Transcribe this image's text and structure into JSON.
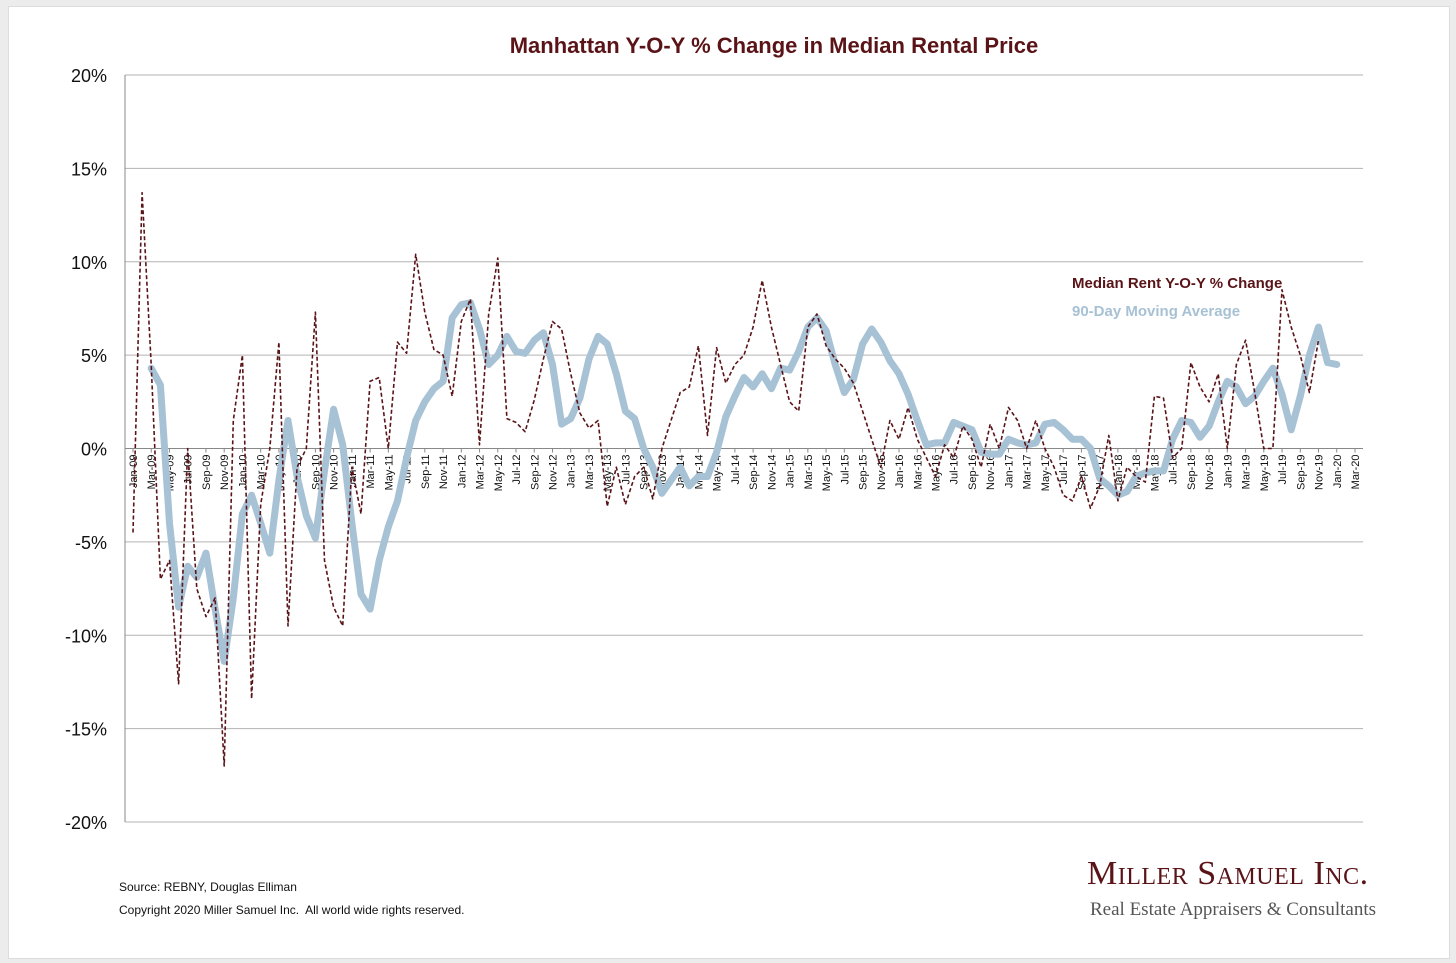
{
  "chart_data": {
    "type": "line",
    "title": "Manhattan Y-O-Y % Change in Median Rental Price",
    "xlabel": "",
    "ylabel": "",
    "ylim": [
      -20,
      20
    ],
    "yticks": [
      20,
      15,
      10,
      5,
      0,
      -5,
      -10,
      -15,
      -20
    ],
    "ytick_labels": [
      "20%",
      "15%",
      "10%",
      "5%",
      "0%",
      "-5%",
      "-10%",
      "-15%",
      "-20%"
    ],
    "grid": true,
    "legend_position": "upper-right",
    "colors": {
      "rent": "#5a1418",
      "avg": "#a7c1d5",
      "title": "#5a1418",
      "grid": "#b3b3b3"
    },
    "start_month": "Jan-09",
    "x_tick_labels": [
      "Jan-09",
      "Mar-09",
      "May-09",
      "Jul-09",
      "Sep-09",
      "Nov-09",
      "Jan-10",
      "Mar-10",
      "May-10",
      "Jul-10",
      "Sep-10",
      "Nov-10",
      "Jan-11",
      "Mar-11",
      "May-11",
      "Jul-11",
      "Sep-11",
      "Nov-11",
      "Jan-12",
      "Mar-12",
      "May-12",
      "Jul-12",
      "Sep-12",
      "Nov-12",
      "Jan-13",
      "Mar-13",
      "May-13",
      "Jul-13",
      "Sep-13",
      "Nov-13",
      "Jan-14",
      "Mar-14",
      "May-14",
      "Jul-14",
      "Sep-14",
      "Nov-14",
      "Jan-15",
      "Mar-15",
      "May-15",
      "Jul-15",
      "Sep-15",
      "Nov-15",
      "Jan-16",
      "Mar-16",
      "May-16",
      "Jul-16",
      "Sep-16",
      "Nov-16",
      "Jan-17",
      "Mar-17",
      "May-17",
      "Jul-17",
      "Sep-17",
      "Nov-17",
      "Jan-18",
      "Mar-18",
      "May-18",
      "Jul-18",
      "Sep-18",
      "Nov-18",
      "Jan-19",
      "Mar-19",
      "May-19",
      "Jul-19",
      "Sep-19",
      "Nov-19",
      "Jan-20",
      "Mar-20"
    ],
    "series": [
      {
        "name": "Median Rent Y-O-Y % Change",
        "start_index": 0,
        "values": [
          -4.5,
          13.7,
          4.5,
          -7.0,
          -6.0,
          -12.6,
          0.0,
          -7.5,
          -9.0,
          -8.0,
          -17.0,
          1.5,
          5.0,
          -13.4,
          -3.0,
          0.0,
          5.7,
          -9.5,
          -1.0,
          0.0,
          7.3,
          -6.0,
          -8.5,
          -9.5,
          -1.0,
          -3.5,
          3.6,
          3.8,
          0.0,
          5.7,
          5.1,
          10.4,
          7.3,
          5.3,
          5.0,
          2.8,
          6.8,
          8.0,
          0.2,
          7.2,
          10.2,
          1.6,
          1.4,
          0.9,
          2.6,
          4.8,
          6.8,
          6.4,
          4.0,
          1.9,
          1.1,
          1.5,
          -3.1,
          -1.0,
          -3.0,
          -1.5,
          -1.0,
          -2.7,
          0.0,
          1.5,
          3.0,
          3.3,
          5.5,
          0.7,
          5.4,
          3.5,
          4.5,
          5.0,
          6.5,
          9.0,
          6.5,
          4.5,
          2.5,
          2.0,
          6.5,
          7.2,
          5.5,
          4.8,
          4.3,
          3.5,
          2.0,
          0.5,
          -1.0,
          1.5,
          0.5,
          2.2,
          0.5,
          -0.5,
          -1.5,
          0.2,
          -0.5,
          1.2,
          0.5,
          -1.0,
          1.3,
          0.0,
          2.2,
          1.5,
          0.0,
          1.5,
          0.0,
          -1.0,
          -2.5,
          -2.8,
          -1.5,
          -3.2,
          -2.0,
          0.7,
          -2.8,
          -1.0,
          -1.5,
          -1.8,
          2.8,
          2.7,
          -0.5,
          0.0,
          4.6,
          3.3,
          2.5,
          4.0,
          0.0,
          4.5,
          5.8,
          3.0,
          0.0,
          0.0,
          8.5,
          6.5,
          5.0,
          3.0,
          5.8
        ]
      },
      {
        "name": "90-Day Moving Average",
        "start_index": 2,
        "values": [
          4.3,
          3.4,
          -4.0,
          -8.5,
          -6.3,
          -6.9,
          -5.6,
          -8.6,
          -11.4,
          -8.0,
          -3.5,
          -2.5,
          -4.0,
          -5.6,
          -1.7,
          1.5,
          -1.5,
          -3.6,
          -4.8,
          -1.2,
          2.1,
          0.2,
          -4.0,
          -7.8,
          -8.6,
          -6.0,
          -4.2,
          -2.8,
          -0.5,
          1.5,
          2.5,
          3.2,
          3.6,
          7.0,
          7.7,
          7.8,
          6.4,
          4.5,
          5.0,
          6.0,
          5.2,
          5.1,
          5.8,
          6.2,
          4.5,
          1.3,
          1.6,
          2.7,
          4.8,
          6.0,
          5.6,
          4.0,
          2.0,
          1.6,
          0.0,
          -1.0,
          -2.4,
          -1.7,
          -1.0,
          -2.0,
          -1.5,
          -1.5,
          -0.2,
          1.7,
          2.8,
          3.8,
          3.3,
          4.0,
          3.2,
          4.3,
          4.2,
          5.2,
          6.5,
          7.0,
          6.3,
          4.5,
          3.0,
          3.7,
          5.6,
          6.4,
          5.7,
          4.7,
          4.0,
          2.9,
          1.5,
          0.2,
          0.3,
          0.3,
          1.4,
          1.2,
          1.0,
          -0.2,
          -0.3,
          -0.3,
          0.5,
          0.3,
          0.2,
          0.3,
          1.3,
          1.4,
          1.0,
          0.5,
          0.5,
          0.0,
          -1.6,
          -2.0,
          -2.5,
          -2.3,
          -1.5,
          -1.3,
          -1.2,
          -1.2,
          0.5,
          1.5,
          1.4,
          0.6,
          1.2,
          2.5,
          3.6,
          3.3,
          2.4,
          2.8,
          3.6,
          4.3,
          2.9,
          1.0,
          2.8,
          5.0,
          6.5,
          4.6,
          4.5
        ]
      }
    ]
  },
  "legend": {
    "rent_label": "Median Rent Y-O-Y % Change",
    "avg_label": "90-Day Moving Average"
  },
  "footer": {
    "source": "Source: REBNY, Douglas Elliman",
    "copyright": "Copyright 2020 Miller Samuel Inc.  All world wide rights reserved."
  },
  "brand": {
    "name": "Miller Samuel Inc.",
    "tagline": "Real Estate Appraisers & Consultants"
  }
}
